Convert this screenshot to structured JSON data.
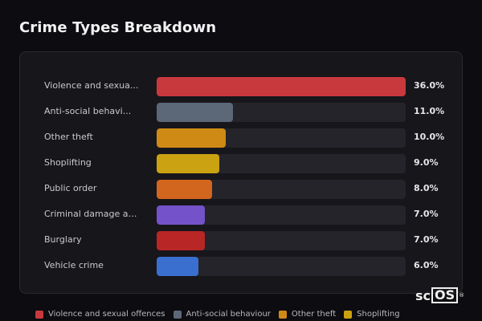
{
  "title": "Crime Types Breakdown",
  "colors": {
    "violence": "#c8393e",
    "anti_social": "#5c6778",
    "other_theft": "#cf8a15",
    "shoplifting": "#caa212",
    "public_order": "#d2661e",
    "criminal_damage": "#7452c9",
    "burglary": "#b82626",
    "vehicle": "#3a6fd0"
  },
  "chart_data": {
    "type": "bar",
    "orientation": "horizontal",
    "categories": [
      "Violence and sexua...",
      "Anti-social behavi...",
      "Other theft",
      "Shoplifting",
      "Public order",
      "Criminal damage an...",
      "Burglary",
      "Vehicle crime"
    ],
    "values": [
      36.0,
      11.0,
      10.0,
      9.0,
      8.0,
      7.0,
      7.0,
      6.0
    ],
    "value_labels": [
      "36.0%",
      "11.0%",
      "10.0%",
      "9.0%",
      "8.0%",
      "7.0%",
      "7.0%",
      "6.0%"
    ],
    "bar_colors": [
      "#c8393e",
      "#5c6778",
      "#cf8a15",
      "#caa212",
      "#d2661e",
      "#7452c9",
      "#b82626",
      "#3a6fd0"
    ],
    "xlim": [
      0,
      36
    ],
    "title": "Crime Types Breakdown"
  },
  "legend": [
    {
      "label": "Violence and sexual offences",
      "color": "#c8393e"
    },
    {
      "label": "Anti-social behaviour",
      "color": "#5c6778"
    },
    {
      "label": "Other theft",
      "color": "#cf8a15"
    },
    {
      "label": "Shoplifting",
      "color": "#caa212"
    }
  ],
  "logo": {
    "prefix": "sc",
    "boxed": "OS",
    "mark": "®"
  }
}
